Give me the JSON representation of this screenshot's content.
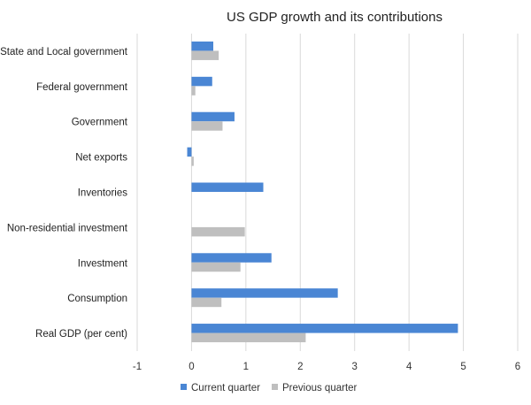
{
  "chart_data": {
    "type": "bar",
    "orientation": "horizontal",
    "title": "US GDP growth and its contributions",
    "categories": [
      "State and Local government",
      "Federal government",
      "Government",
      "Net exports",
      "Inventories",
      "Non-residential investment",
      "Investment",
      "Consumption",
      "Real GDP (per cent)"
    ],
    "series": [
      {
        "name": "Current quarter",
        "color": "#4a86d4",
        "values": [
          0.4,
          0.38,
          0.79,
          -0.08,
          1.32,
          0.0,
          1.47,
          2.69,
          4.9
        ]
      },
      {
        "name": "Previous quarter",
        "color": "#bfbfbf",
        "values": [
          0.5,
          0.07,
          0.57,
          0.04,
          0.0,
          0.98,
          0.9,
          0.55,
          2.1
        ]
      }
    ],
    "xlim": [
      -1,
      6
    ],
    "xticks": [
      "-1",
      "0",
      "1",
      "2",
      "3",
      "4",
      "5",
      "6"
    ],
    "grid": "vertical",
    "legend": "bottom",
    "xlabel": "",
    "ylabel": ""
  }
}
